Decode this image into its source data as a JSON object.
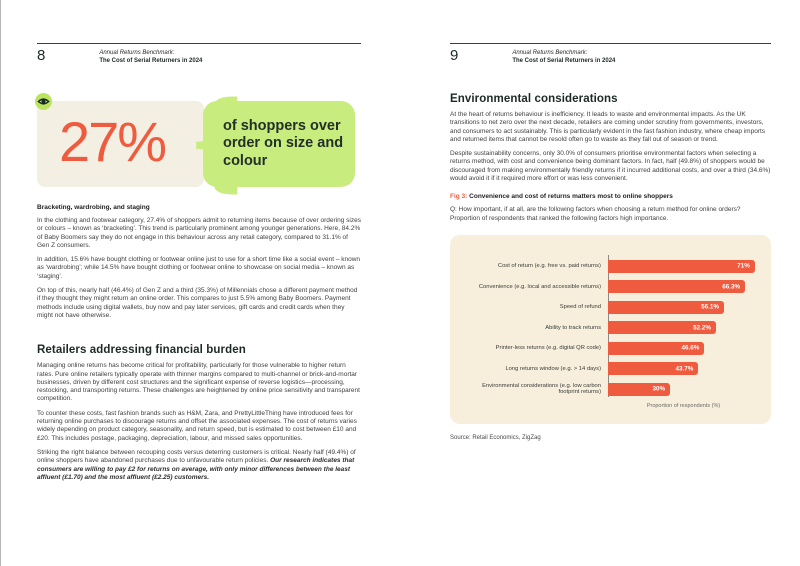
{
  "colors": {
    "accent_orange": "#ee5b3f",
    "lime": "#c9ec7f",
    "stat_card_beige": "#f3efe3",
    "chart_card_beige": "#f7efdc",
    "dark_heading": "#1c2a24"
  },
  "pages": {
    "left": {
      "page_number": "8",
      "header_line1": "Annual Returns Benchmark:",
      "header_line2": "The Cost of Serial Returners in 2024",
      "stat": {
        "value": "27%",
        "caption": "of shoppers over order on size and colour",
        "icon": "eye-icon"
      },
      "subheading": "Bracketing, wardrobing, and staging",
      "paragraphs": [
        "In the clothing and footwear category, 27.4% of shoppers admit to returning items because of over ordering sizes or colours – known as ‘bracketing’. This trend is particularly prominent among younger generations. Here, 84.2% of Baby Boomers say they do not engage in this behaviour across any retail category, compared to 31.1% of Gen Z consumers.",
        "In addition, 15.6% have bought clothing or footwear online just to use for a short time like a social event – known as ‘wardrobing’; while 14.5% have bought clothing or footwear online to showcase on social media – known as ‘staging’.",
        "On top of this, nearly half (46.4%) of Gen Z and a third (35.3%) of Millennials chose a different payment method if they thought they might return an online order. This compares to just 5.5% among Baby Boomers. Payment methods include using digital wallets, buy now and pay later services, gift cards and credit cards when they might not have otherwise."
      ],
      "section_heading": "Retailers addressing financial burden",
      "section_paragraphs": [
        "Managing online returns has become critical for profitability, particularly for those vulnerable to higher return rates. Pure online retailers typically operate with thinner margins compared to multi-channel or brick-and-mortar businesses, driven by different cost structures and the significant expense of reverse logistics—processing, restocking, and transporting returns. These challenges are heightened by online price sensitivity and transparent competition.",
        "To counter these costs, fast fashion brands such as H&M, Zara, and PrettyLittleThing have introduced fees for returning online purchases to discourage returns and offset the associated expenses. The cost of returns varies widely depending on product category, seasonality, and return speed, but is estimated to cost between £10 and £20. This includes postage, packaging, depreciation, labour, and missed sales opportunities."
      ],
      "closing_normal": "Striking the right balance between recouping costs versus deterring customers is critical. Nearly half (49.4%) of online shoppers have abandoned purchases due to unfavourable return policies. ",
      "closing_emphasis": "Our research indicates that consumers are willing to pay £2 for returns on average, with only minor differences between the least affluent (£1.70) and the most affluent (£2.25) customers."
    },
    "right": {
      "page_number": "9",
      "header_line1": "Annual Returns Benchmark:",
      "header_line2": "The Cost of Serial Returners in 2024",
      "heading": "Environmental considerations",
      "paragraphs": [
        "At the heart of returns behaviour is inefficiency. It leads to waste and environmental impacts. As the UK transitions to net zero over the next decade, retailers are coming under scrutiny from governments, investors, and consumers to act sustainably. This is particularly evident in the fast fashion industry, where cheap imports and returned items that cannot be resold often go to waste as they fall out of season or trend.",
        "Despite sustainability concerns, only 30.0% of consumers prioritise environmental factors when selecting a returns method, with cost and convenience being dominant factors. In fact, half (49.8%) of shoppers would be discouraged from making environmentally friendly returns if it incurred additional costs, and over a third (34.6%) would avoid it if it required more effort or was less convenient.",
        "Q: How important, if at all, are the following factors when choosing a return method for online orders? Proportion of respondents that ranked the following factors high importance."
      ],
      "fig_label": "Fig 3:",
      "fig_title": " Convenience and cost of returns matters most to online shoppers",
      "source": "Source: Retail Economics, ZigZag"
    }
  },
  "chart_data": {
    "type": "bar",
    "orientation": "horizontal",
    "title": "Convenience and cost of returns matters most to online shoppers",
    "categories": [
      "Cost of return (e.g. free vs. paid returns)",
      "Convenience (e.g. local and accessible returns)",
      "Speed of refund",
      "Ability to track returns",
      "Printer-less returns (e.g. digital QR code)",
      "Long returns window (e.g. > 14 days)",
      "Environmental considerations (e.g. low carbon footprint returns)"
    ],
    "values": [
      71,
      66.3,
      56.1,
      52.2,
      46.6,
      43.7,
      30
    ],
    "value_labels": [
      "71%",
      "66.3%",
      "56.1%",
      "52.2%",
      "46.6%",
      "43.7%",
      "30%"
    ],
    "xlabel": "Proportion of respondents (%)",
    "xlim": [
      0,
      73
    ],
    "grid": false,
    "legend": false,
    "bar_color": "#ee5b3f"
  }
}
